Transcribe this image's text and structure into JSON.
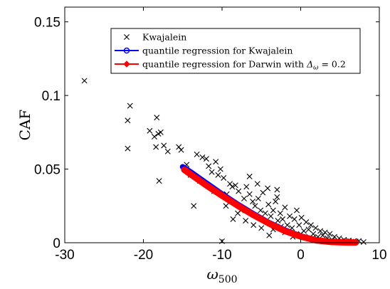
{
  "chart_data": {
    "type": "scatter",
    "xlabel": "ω500",
    "xlabel_base": "ω",
    "xlabel_sub": "500",
    "ylabel": "CAF",
    "xlim": [
      -30,
      10
    ],
    "ylim": [
      0,
      0.16
    ],
    "x_ticks": [
      -30,
      -20,
      -10,
      0,
      10
    ],
    "x_tick_labels": [
      "-30",
      "-20",
      "-10",
      "0",
      "10"
    ],
    "y_ticks": [
      0,
      0.05,
      0.1,
      0.15
    ],
    "y_tick_labels": [
      "0",
      "0.05",
      "0.1",
      "0.15"
    ],
    "grid": false,
    "legend_position": "top-right",
    "legend": [
      {
        "label": "Kwajalein",
        "marker": "x",
        "color": "#000000"
      },
      {
        "label": "quantile regression for Kwajalein",
        "marker": "circle-line",
        "color": "#0000ff"
      },
      {
        "label": "quantile regression for Darwin with Δω = 0.2",
        "text_main": "quantile regression for Darwin with ",
        "math_base": "Δ",
        "math_sub": "ω",
        "math_rest": " = 0.2",
        "marker": "diamond-line",
        "color": "#ff0000"
      }
    ],
    "series": [
      {
        "name": "Kwajalein",
        "kind": "scatter",
        "color": "#000000",
        "points": [
          [
            -27.5,
            0.11
          ],
          [
            -21.7,
            0.093
          ],
          [
            -22.0,
            0.083
          ],
          [
            -22.0,
            0.064
          ],
          [
            -19.2,
            0.076
          ],
          [
            -18.6,
            0.072
          ],
          [
            -18.3,
            0.085
          ],
          [
            -18.1,
            0.074
          ],
          [
            -17.8,
            0.075
          ],
          [
            -17.4,
            0.066
          ],
          [
            -16.9,
            0.062
          ],
          [
            -18.4,
            0.065
          ],
          [
            -18.0,
            0.042
          ],
          [
            -15.5,
            0.065
          ],
          [
            -15.2,
            0.063
          ],
          [
            -14.5,
            0.053
          ],
          [
            -14.0,
            0.046
          ],
          [
            -13.6,
            0.025
          ],
          [
            -13.2,
            0.06
          ],
          [
            -12.5,
            0.058
          ],
          [
            -12.0,
            0.057
          ],
          [
            -11.7,
            0.052
          ],
          [
            -11.3,
            0.048
          ],
          [
            -10.8,
            0.055
          ],
          [
            -10.5,
            0.046
          ],
          [
            -10.2,
            0.05
          ],
          [
            -9.8,
            0.044
          ],
          [
            -9.4,
            0.033
          ],
          [
            -9.0,
            0.04
          ],
          [
            -8.7,
            0.038
          ],
          [
            -8.6,
            0.016
          ],
          [
            -8.3,
            0.039
          ],
          [
            -7.9,
            0.035
          ],
          [
            -7.6,
            0.022
          ],
          [
            -7.2,
            0.03
          ],
          [
            -6.9,
            0.038
          ],
          [
            -6.5,
            0.033
          ],
          [
            -6.1,
            0.028
          ],
          [
            -5.8,
            0.025
          ],
          [
            -5.4,
            0.03
          ],
          [
            -5.1,
            0.022
          ],
          [
            -4.8,
            0.034
          ],
          [
            -4.5,
            0.02
          ],
          [
            -4.1,
            0.026
          ],
          [
            -3.8,
            0.018
          ],
          [
            -3.5,
            0.022
          ],
          [
            -3.2,
            0.028
          ],
          [
            -2.9,
            0.015
          ],
          [
            -2.6,
            0.02
          ],
          [
            -2.3,
            0.016
          ],
          [
            -2.0,
            0.024
          ],
          [
            -1.7,
            0.012
          ],
          [
            -1.4,
            0.018
          ],
          [
            -1.1,
            0.01
          ],
          [
            -0.8,
            0.016
          ],
          [
            -0.5,
            0.022
          ],
          [
            -0.2,
            0.012
          ],
          [
            0.1,
            0.017
          ],
          [
            0.4,
            0.008
          ],
          [
            0.7,
            0.014
          ],
          [
            1.0,
            0.009
          ],
          [
            1.3,
            0.012
          ],
          [
            1.6,
            0.006
          ],
          [
            1.9,
            0.01
          ],
          [
            2.2,
            0.004
          ],
          [
            2.5,
            0.008
          ],
          [
            2.8,
            0.005
          ],
          [
            3.1,
            0.007
          ],
          [
            3.4,
            0.003
          ],
          [
            3.7,
            0.006
          ],
          [
            4.0,
            0.002
          ],
          [
            4.3,
            0.004
          ],
          [
            4.6,
            0.001
          ],
          [
            4.9,
            0.003
          ],
          [
            5.2,
            0.001
          ],
          [
            5.5,
            0.002
          ],
          [
            5.8,
            0.001
          ],
          [
            6.1,
            0.0015
          ],
          [
            6.4,
            0.0005
          ],
          [
            6.7,
            0.001
          ],
          [
            7.0,
            0.0008
          ],
          [
            7.4,
            0.0012
          ],
          [
            8.0,
            0.0005
          ],
          [
            -10.0,
            0.001
          ],
          [
            -4.0,
            0.005
          ],
          [
            -3.0,
            0.031
          ],
          [
            -2.0,
            0.007
          ],
          [
            -1.0,
            0.004
          ],
          [
            0.0,
            0.006
          ],
          [
            1.5,
            0.003
          ],
          [
            -6.0,
            0.012
          ],
          [
            -7.0,
            0.015
          ],
          [
            -8.0,
            0.02
          ],
          [
            -5.0,
            0.01
          ],
          [
            -3.5,
            0.009
          ],
          [
            -2.5,
            0.011
          ],
          [
            -1.5,
            0.008
          ],
          [
            -0.5,
            0.005
          ],
          [
            0.5,
            0.004
          ],
          [
            2.0,
            0.002
          ],
          [
            3.0,
            0.0015
          ],
          [
            -9.5,
            0.025
          ],
          [
            -11.0,
            0.035
          ],
          [
            -12.8,
            0.042
          ],
          [
            -6.5,
            0.045
          ],
          [
            -5.5,
            0.04
          ],
          [
            -4.2,
            0.037
          ],
          [
            -3.0,
            0.036
          ]
        ]
      },
      {
        "name": "quantile regression for Kwajalein",
        "kind": "line",
        "color": "#0000ff",
        "points": [
          [
            -15.0,
            0.0515
          ],
          [
            -14.0,
            0.048
          ],
          [
            -12.0,
            0.0405
          ],
          [
            -10.0,
            0.033
          ],
          [
            -8.0,
            0.026
          ],
          [
            -6.0,
            0.0195
          ],
          [
            -4.0,
            0.0135
          ],
          [
            -2.0,
            0.0085
          ],
          [
            0.0,
            0.0045
          ],
          [
            2.0,
            0.0018
          ],
          [
            4.0,
            0.0005
          ],
          [
            6.0,
            0.0002
          ],
          [
            7.0,
            0.0002
          ]
        ]
      },
      {
        "name": "quantile regression for Darwin with Δω = 0.2",
        "kind": "line",
        "color": "#ff0000",
        "points": [
          [
            -14.8,
            0.0495
          ],
          [
            -14.0,
            0.0465
          ],
          [
            -12.0,
            0.039
          ],
          [
            -10.0,
            0.032
          ],
          [
            -8.0,
            0.0252
          ],
          [
            -6.0,
            0.0188
          ],
          [
            -4.0,
            0.013
          ],
          [
            -2.0,
            0.008
          ],
          [
            0.0,
            0.0042
          ],
          [
            2.0,
            0.0016
          ],
          [
            4.0,
            0.0005
          ],
          [
            6.0,
            0.0002
          ],
          [
            7.0,
            0.0002
          ]
        ]
      }
    ]
  }
}
